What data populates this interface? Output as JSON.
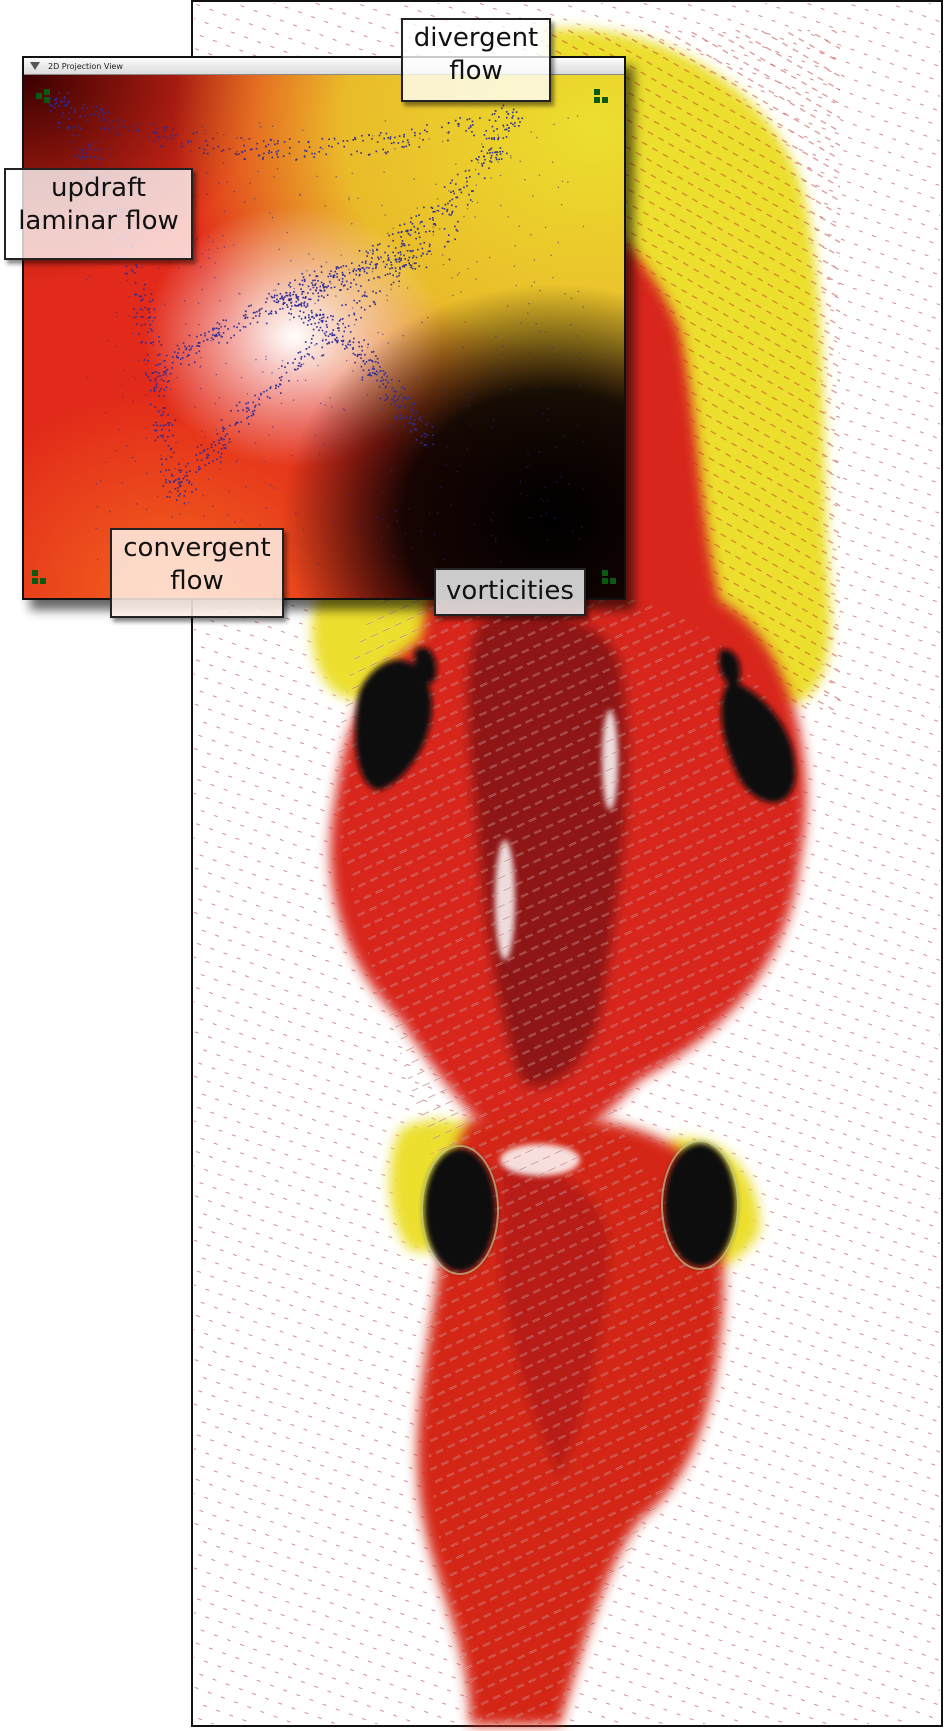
{
  "window": {
    "title": "2D Projection View"
  },
  "labels": {
    "divergent": [
      "divergent",
      "flow"
    ],
    "updraft": [
      "updraft",
      "laminar flow"
    ],
    "convergent": [
      "convergent",
      "flow"
    ],
    "vorticities": "vorticities"
  },
  "colors": {
    "laminar": "#e8261a",
    "divergent": "#ecdf2e",
    "vortex": "#000000",
    "convergent": "#f05a20",
    "points": "#2c2c9a",
    "arrows": "#8a1f2a"
  },
  "icons": [
    "collapse-triangle-icon",
    "corner-handle-icon"
  ]
}
